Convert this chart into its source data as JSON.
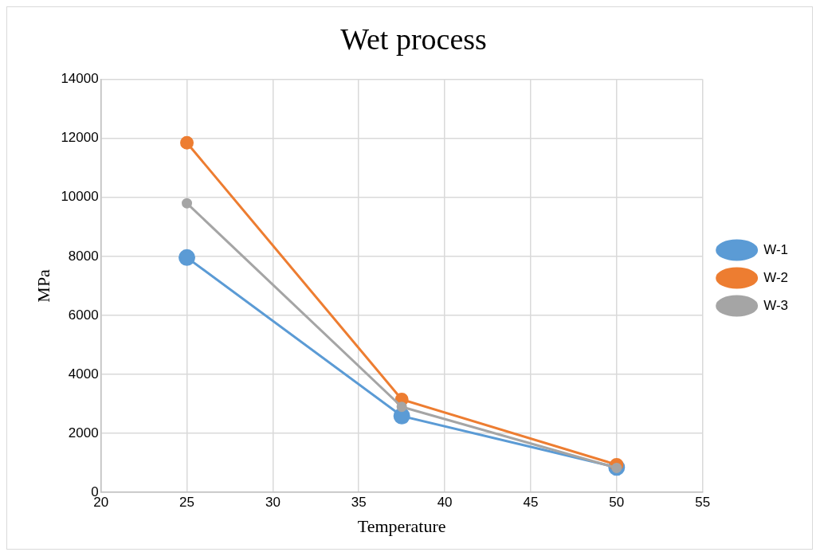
{
  "chart_data": {
    "type": "line",
    "title": "Wet process",
    "xlabel": "Temperature",
    "ylabel": "MPa",
    "x": [
      25,
      37.5,
      50
    ],
    "series": [
      {
        "name": "W-1",
        "color": "#5b9bd5",
        "values": [
          7960,
          2590,
          850
        ]
      },
      {
        "name": "W-2",
        "color": "#ed7d31",
        "values": [
          11850,
          3150,
          940
        ]
      },
      {
        "name": "W-3",
        "color": "#a5a5a5",
        "values": [
          9800,
          2900,
          830
        ]
      }
    ],
    "xlim": [
      20,
      55
    ],
    "xticks": [
      20,
      25,
      30,
      35,
      40,
      45,
      50,
      55
    ],
    "ylim": [
      0,
      14000
    ],
    "yticks": [
      0,
      2000,
      4000,
      6000,
      8000,
      10000,
      12000,
      14000
    ],
    "grid": true,
    "legend": "right",
    "marker": "circle",
    "line_style": "solid"
  }
}
